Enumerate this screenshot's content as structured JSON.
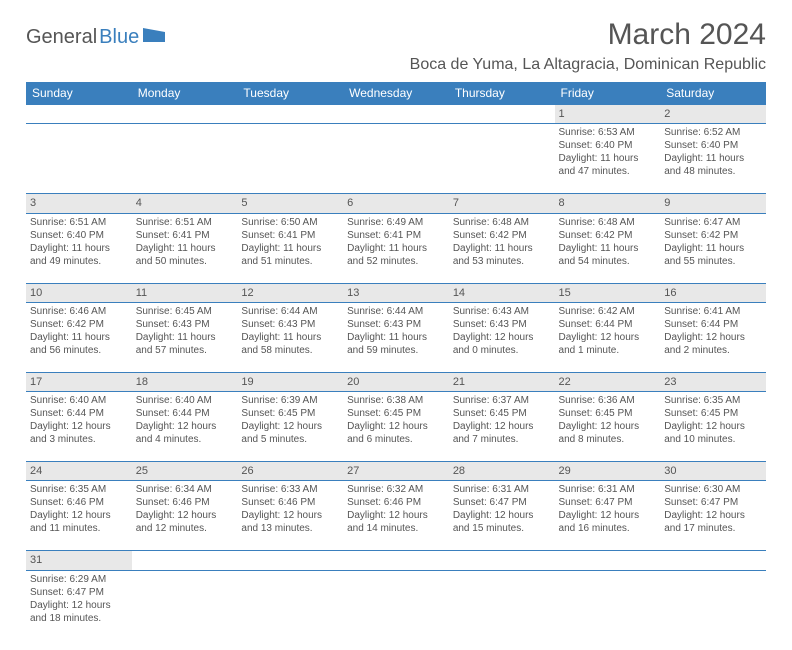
{
  "header": {
    "logo_part1": "General",
    "logo_part2": "Blue",
    "month_title": "March 2024",
    "location": "Boca de Yuma, La Altagracia, Dominican Republic"
  },
  "style": {
    "header_bg": "#3a7fbd",
    "header_fg": "#ffffff",
    "daynum_bg": "#e8e8e8",
    "text_color": "#555555",
    "border_color": "#3a7fbd",
    "page_bg": "#ffffff",
    "font_family": "Arial, Helvetica, sans-serif",
    "month_title_fontsize": 30,
    "location_fontsize": 16,
    "th_fontsize": 12,
    "cell_fontsize": 10
  },
  "day_headers": [
    "Sunday",
    "Monday",
    "Tuesday",
    "Wednesday",
    "Thursday",
    "Friday",
    "Saturday"
  ],
  "weeks": [
    [
      null,
      null,
      null,
      null,
      null,
      {
        "n": "1",
        "sr": "Sunrise: 6:53 AM",
        "ss": "Sunset: 6:40 PM",
        "d1": "Daylight: 11 hours",
        "d2": "and 47 minutes."
      },
      {
        "n": "2",
        "sr": "Sunrise: 6:52 AM",
        "ss": "Sunset: 6:40 PM",
        "d1": "Daylight: 11 hours",
        "d2": "and 48 minutes."
      }
    ],
    [
      {
        "n": "3",
        "sr": "Sunrise: 6:51 AM",
        "ss": "Sunset: 6:40 PM",
        "d1": "Daylight: 11 hours",
        "d2": "and 49 minutes."
      },
      {
        "n": "4",
        "sr": "Sunrise: 6:51 AM",
        "ss": "Sunset: 6:41 PM",
        "d1": "Daylight: 11 hours",
        "d2": "and 50 minutes."
      },
      {
        "n": "5",
        "sr": "Sunrise: 6:50 AM",
        "ss": "Sunset: 6:41 PM",
        "d1": "Daylight: 11 hours",
        "d2": "and 51 minutes."
      },
      {
        "n": "6",
        "sr": "Sunrise: 6:49 AM",
        "ss": "Sunset: 6:41 PM",
        "d1": "Daylight: 11 hours",
        "d2": "and 52 minutes."
      },
      {
        "n": "7",
        "sr": "Sunrise: 6:48 AM",
        "ss": "Sunset: 6:42 PM",
        "d1": "Daylight: 11 hours",
        "d2": "and 53 minutes."
      },
      {
        "n": "8",
        "sr": "Sunrise: 6:48 AM",
        "ss": "Sunset: 6:42 PM",
        "d1": "Daylight: 11 hours",
        "d2": "and 54 minutes."
      },
      {
        "n": "9",
        "sr": "Sunrise: 6:47 AM",
        "ss": "Sunset: 6:42 PM",
        "d1": "Daylight: 11 hours",
        "d2": "and 55 minutes."
      }
    ],
    [
      {
        "n": "10",
        "sr": "Sunrise: 6:46 AM",
        "ss": "Sunset: 6:42 PM",
        "d1": "Daylight: 11 hours",
        "d2": "and 56 minutes."
      },
      {
        "n": "11",
        "sr": "Sunrise: 6:45 AM",
        "ss": "Sunset: 6:43 PM",
        "d1": "Daylight: 11 hours",
        "d2": "and 57 minutes."
      },
      {
        "n": "12",
        "sr": "Sunrise: 6:44 AM",
        "ss": "Sunset: 6:43 PM",
        "d1": "Daylight: 11 hours",
        "d2": "and 58 minutes."
      },
      {
        "n": "13",
        "sr": "Sunrise: 6:44 AM",
        "ss": "Sunset: 6:43 PM",
        "d1": "Daylight: 11 hours",
        "d2": "and 59 minutes."
      },
      {
        "n": "14",
        "sr": "Sunrise: 6:43 AM",
        "ss": "Sunset: 6:43 PM",
        "d1": "Daylight: 12 hours",
        "d2": "and 0 minutes."
      },
      {
        "n": "15",
        "sr": "Sunrise: 6:42 AM",
        "ss": "Sunset: 6:44 PM",
        "d1": "Daylight: 12 hours",
        "d2": "and 1 minute."
      },
      {
        "n": "16",
        "sr": "Sunrise: 6:41 AM",
        "ss": "Sunset: 6:44 PM",
        "d1": "Daylight: 12 hours",
        "d2": "and 2 minutes."
      }
    ],
    [
      {
        "n": "17",
        "sr": "Sunrise: 6:40 AM",
        "ss": "Sunset: 6:44 PM",
        "d1": "Daylight: 12 hours",
        "d2": "and 3 minutes."
      },
      {
        "n": "18",
        "sr": "Sunrise: 6:40 AM",
        "ss": "Sunset: 6:44 PM",
        "d1": "Daylight: 12 hours",
        "d2": "and 4 minutes."
      },
      {
        "n": "19",
        "sr": "Sunrise: 6:39 AM",
        "ss": "Sunset: 6:45 PM",
        "d1": "Daylight: 12 hours",
        "d2": "and 5 minutes."
      },
      {
        "n": "20",
        "sr": "Sunrise: 6:38 AM",
        "ss": "Sunset: 6:45 PM",
        "d1": "Daylight: 12 hours",
        "d2": "and 6 minutes."
      },
      {
        "n": "21",
        "sr": "Sunrise: 6:37 AM",
        "ss": "Sunset: 6:45 PM",
        "d1": "Daylight: 12 hours",
        "d2": "and 7 minutes."
      },
      {
        "n": "22",
        "sr": "Sunrise: 6:36 AM",
        "ss": "Sunset: 6:45 PM",
        "d1": "Daylight: 12 hours",
        "d2": "and 8 minutes."
      },
      {
        "n": "23",
        "sr": "Sunrise: 6:35 AM",
        "ss": "Sunset: 6:45 PM",
        "d1": "Daylight: 12 hours",
        "d2": "and 10 minutes."
      }
    ],
    [
      {
        "n": "24",
        "sr": "Sunrise: 6:35 AM",
        "ss": "Sunset: 6:46 PM",
        "d1": "Daylight: 12 hours",
        "d2": "and 11 minutes."
      },
      {
        "n": "25",
        "sr": "Sunrise: 6:34 AM",
        "ss": "Sunset: 6:46 PM",
        "d1": "Daylight: 12 hours",
        "d2": "and 12 minutes."
      },
      {
        "n": "26",
        "sr": "Sunrise: 6:33 AM",
        "ss": "Sunset: 6:46 PM",
        "d1": "Daylight: 12 hours",
        "d2": "and 13 minutes."
      },
      {
        "n": "27",
        "sr": "Sunrise: 6:32 AM",
        "ss": "Sunset: 6:46 PM",
        "d1": "Daylight: 12 hours",
        "d2": "and 14 minutes."
      },
      {
        "n": "28",
        "sr": "Sunrise: 6:31 AM",
        "ss": "Sunset: 6:47 PM",
        "d1": "Daylight: 12 hours",
        "d2": "and 15 minutes."
      },
      {
        "n": "29",
        "sr": "Sunrise: 6:31 AM",
        "ss": "Sunset: 6:47 PM",
        "d1": "Daylight: 12 hours",
        "d2": "and 16 minutes."
      },
      {
        "n": "30",
        "sr": "Sunrise: 6:30 AM",
        "ss": "Sunset: 6:47 PM",
        "d1": "Daylight: 12 hours",
        "d2": "and 17 minutes."
      }
    ],
    [
      {
        "n": "31",
        "sr": "Sunrise: 6:29 AM",
        "ss": "Sunset: 6:47 PM",
        "d1": "Daylight: 12 hours",
        "d2": "and 18 minutes."
      },
      null,
      null,
      null,
      null,
      null,
      null
    ]
  ]
}
